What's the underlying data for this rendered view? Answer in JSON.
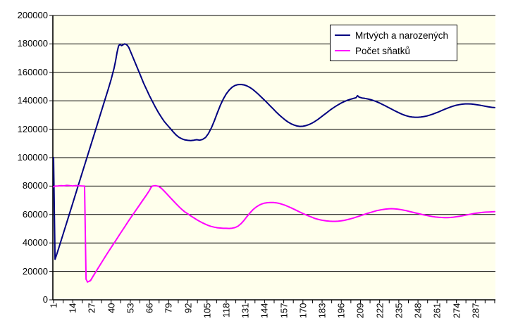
{
  "colors": {
    "canvas_bg": "#FFFFFF",
    "plot_bg": "#FFFFEC",
    "grid": "#000000",
    "axis": "#000000",
    "series1": "#000080",
    "series2": "#FF00FF",
    "legend_bg": "#FFFFFF",
    "legend_border": "#000000",
    "label_text": "#000000"
  },
  "chart_data": {
    "type": "line",
    "title": "",
    "xlabel": "",
    "ylabel": "",
    "grid": "horizontal",
    "legend_position": "top-right",
    "y_axis": {
      "min": 0,
      "max": 200000,
      "step": 20000,
      "tick_labels": [
        "0",
        "20000",
        "40000",
        "60000",
        "80000",
        "100000",
        "120000",
        "140000",
        "160000",
        "180000",
        "200000"
      ]
    },
    "x_axis": {
      "min": 1,
      "max": 300,
      "label_interval": 13,
      "minor_tick_interval": 6.5,
      "tick_labels": [
        "1",
        "14",
        "27",
        "40",
        "53",
        "66",
        "79",
        "92",
        "105",
        "118",
        "131",
        "144",
        "157",
        "170",
        "183",
        "196",
        "209",
        "222",
        "235",
        "248",
        "261",
        "274",
        "287"
      ]
    },
    "series": [
      {
        "name": "Mrtvých a narozených",
        "color": "#000080",
        "points": [
          [
            1,
            100000
          ],
          [
            2,
            28500
          ],
          [
            3,
            31500
          ],
          [
            5,
            38000
          ],
          [
            8,
            48000
          ],
          [
            11,
            58000
          ],
          [
            14,
            68000
          ],
          [
            17,
            78000
          ],
          [
            20,
            88000
          ],
          [
            23,
            98000
          ],
          [
            26,
            108000
          ],
          [
            29,
            118000
          ],
          [
            32,
            128000
          ],
          [
            35,
            138000
          ],
          [
            38,
            148000
          ],
          [
            40,
            155000
          ],
          [
            42,
            163000
          ],
          [
            43,
            168000
          ],
          [
            44,
            174000
          ],
          [
            45,
            178500
          ],
          [
            46,
            179800
          ],
          [
            47,
            178800
          ],
          [
            48,
            179300
          ],
          [
            49,
            180000
          ],
          [
            50,
            179800
          ],
          [
            51,
            179000
          ],
          [
            52,
            177500
          ],
          [
            54,
            172500
          ],
          [
            56,
            167500
          ],
          [
            58,
            162500
          ],
          [
            60,
            157500
          ],
          [
            62,
            152500
          ],
          [
            64,
            148000
          ],
          [
            66,
            143500
          ],
          [
            68,
            139500
          ],
          [
            70,
            135500
          ],
          [
            72,
            131800
          ],
          [
            74,
            128500
          ],
          [
            76,
            125500
          ],
          [
            78,
            123000
          ],
          [
            80,
            120700
          ],
          [
            82,
            118200
          ],
          [
            84,
            116000
          ],
          [
            86,
            114300
          ],
          [
            88,
            113200
          ],
          [
            90,
            112500
          ],
          [
            92,
            112200
          ],
          [
            94,
            112000
          ],
          [
            96,
            112300
          ],
          [
            98,
            112600
          ],
          [
            100,
            112300
          ],
          [
            102,
            112800
          ],
          [
            104,
            114200
          ],
          [
            106,
            117000
          ],
          [
            108,
            121000
          ],
          [
            110,
            126000
          ],
          [
            112,
            131500
          ],
          [
            114,
            136800
          ],
          [
            116,
            141200
          ],
          [
            118,
            144800
          ],
          [
            120,
            147500
          ],
          [
            122,
            149500
          ],
          [
            124,
            150800
          ],
          [
            126,
            151400
          ],
          [
            128,
            151500
          ],
          [
            130,
            151200
          ],
          [
            132,
            150500
          ],
          [
            134,
            149400
          ],
          [
            136,
            148000
          ],
          [
            138,
            146300
          ],
          [
            140,
            144400
          ],
          [
            142,
            142400
          ],
          [
            144,
            140400
          ],
          [
            146,
            138300
          ],
          [
            148,
            136200
          ],
          [
            150,
            134100
          ],
          [
            152,
            132000
          ],
          [
            154,
            130000
          ],
          [
            156,
            128200
          ],
          [
            158,
            126500
          ],
          [
            160,
            125000
          ],
          [
            162,
            123800
          ],
          [
            164,
            122900
          ],
          [
            166,
            122300
          ],
          [
            168,
            122000
          ],
          [
            170,
            122100
          ],
          [
            172,
            122500
          ],
          [
            174,
            123200
          ],
          [
            176,
            124200
          ],
          [
            178,
            125400
          ],
          [
            180,
            126800
          ],
          [
            182,
            128300
          ],
          [
            184,
            129900
          ],
          [
            186,
            131500
          ],
          [
            188,
            133100
          ],
          [
            190,
            134600
          ],
          [
            192,
            136000
          ],
          [
            194,
            137300
          ],
          [
            196,
            138400
          ],
          [
            198,
            139400
          ],
          [
            200,
            140300
          ],
          [
            202,
            141000
          ],
          [
            204,
            141600
          ],
          [
            206,
            142200
          ],
          [
            207,
            143600
          ],
          [
            208,
            142600
          ],
          [
            210,
            142000
          ],
          [
            212,
            141700
          ],
          [
            214,
            141300
          ],
          [
            216,
            140800
          ],
          [
            218,
            140100
          ],
          [
            220,
            139300
          ],
          [
            222,
            138400
          ],
          [
            224,
            137400
          ],
          [
            226,
            136400
          ],
          [
            228,
            135300
          ],
          [
            230,
            134200
          ],
          [
            232,
            133100
          ],
          [
            234,
            132100
          ],
          [
            236,
            131100
          ],
          [
            238,
            130200
          ],
          [
            240,
            129500
          ],
          [
            242,
            128900
          ],
          [
            244,
            128600
          ],
          [
            246,
            128400
          ],
          [
            248,
            128400
          ],
          [
            250,
            128600
          ],
          [
            252,
            128900
          ],
          [
            254,
            129300
          ],
          [
            256,
            129900
          ],
          [
            258,
            130600
          ],
          [
            260,
            131400
          ],
          [
            262,
            132200
          ],
          [
            264,
            133100
          ],
          [
            266,
            134000
          ],
          [
            268,
            134800
          ],
          [
            270,
            135600
          ],
          [
            272,
            136300
          ],
          [
            274,
            136900
          ],
          [
            276,
            137300
          ],
          [
            278,
            137600
          ],
          [
            280,
            137800
          ],
          [
            282,
            137800
          ],
          [
            284,
            137700
          ],
          [
            286,
            137500
          ],
          [
            288,
            137200
          ],
          [
            290,
            136900
          ],
          [
            292,
            136500
          ],
          [
            294,
            136100
          ],
          [
            296,
            135700
          ],
          [
            298,
            135400
          ],
          [
            300,
            135200
          ]
        ]
      },
      {
        "name": "Počet sňatků",
        "color": "#FF00FF",
        "points": [
          [
            1,
            79500
          ],
          [
            2,
            80000
          ],
          [
            4,
            80100
          ],
          [
            6,
            80300
          ],
          [
            8,
            80200
          ],
          [
            10,
            80500
          ],
          [
            12,
            80300
          ],
          [
            14,
            80100
          ],
          [
            16,
            80400
          ],
          [
            18,
            80200
          ],
          [
            20,
            80100
          ],
          [
            21,
            80000
          ],
          [
            22,
            80000
          ],
          [
            23,
            14500
          ],
          [
            24,
            12500
          ],
          [
            25,
            13000
          ],
          [
            26,
            13500
          ],
          [
            28,
            17000
          ],
          [
            31,
            22000
          ],
          [
            34,
            27000
          ],
          [
            37,
            32000
          ],
          [
            40,
            36800
          ],
          [
            43,
            41500
          ],
          [
            46,
            46300
          ],
          [
            49,
            51000
          ],
          [
            52,
            55800
          ],
          [
            55,
            60300
          ],
          [
            58,
            64800
          ],
          [
            61,
            69300
          ],
          [
            64,
            73800
          ],
          [
            66,
            77000
          ],
          [
            67,
            79000
          ],
          [
            68,
            80000
          ],
          [
            70,
            80300
          ],
          [
            72,
            79900
          ],
          [
            74,
            78500
          ],
          [
            76,
            76500
          ],
          [
            78,
            74300
          ],
          [
            80,
            72000
          ],
          [
            82,
            69800
          ],
          [
            84,
            67600
          ],
          [
            86,
            65500
          ],
          [
            88,
            63500
          ],
          [
            90,
            61800
          ],
          [
            92,
            60500
          ],
          [
            94,
            59000
          ],
          [
            96,
            57700
          ],
          [
            98,
            56400
          ],
          [
            100,
            55200
          ],
          [
            102,
            54100
          ],
          [
            104,
            53100
          ],
          [
            106,
            52300
          ],
          [
            108,
            51600
          ],
          [
            110,
            51100
          ],
          [
            112,
            50700
          ],
          [
            114,
            50500
          ],
          [
            116,
            50300
          ],
          [
            118,
            50300
          ],
          [
            120,
            50200
          ],
          [
            122,
            50400
          ],
          [
            124,
            50800
          ],
          [
            126,
            51800
          ],
          [
            128,
            53500
          ],
          [
            130,
            55800
          ],
          [
            132,
            58500
          ],
          [
            134,
            61000
          ],
          [
            136,
            63200
          ],
          [
            138,
            65000
          ],
          [
            140,
            66400
          ],
          [
            142,
            67400
          ],
          [
            144,
            68000
          ],
          [
            146,
            68300
          ],
          [
            148,
            68400
          ],
          [
            150,
            68400
          ],
          [
            152,
            68200
          ],
          [
            154,
            67800
          ],
          [
            156,
            67200
          ],
          [
            158,
            66500
          ],
          [
            160,
            65600
          ],
          [
            162,
            64700
          ],
          [
            164,
            63700
          ],
          [
            166,
            62700
          ],
          [
            168,
            61700
          ],
          [
            170,
            60700
          ],
          [
            172,
            59800
          ],
          [
            174,
            58900
          ],
          [
            176,
            58100
          ],
          [
            178,
            57300
          ],
          [
            180,
            56700
          ],
          [
            182,
            56200
          ],
          [
            184,
            55800
          ],
          [
            186,
            55500
          ],
          [
            188,
            55300
          ],
          [
            190,
            55200
          ],
          [
            192,
            55200
          ],
          [
            194,
            55300
          ],
          [
            196,
            55600
          ],
          [
            198,
            55900
          ],
          [
            200,
            56400
          ],
          [
            202,
            56900
          ],
          [
            204,
            57500
          ],
          [
            206,
            58100
          ],
          [
            208,
            58800
          ],
          [
            210,
            59500
          ],
          [
            212,
            60200
          ],
          [
            214,
            60900
          ],
          [
            216,
            61500
          ],
          [
            218,
            62100
          ],
          [
            220,
            62700
          ],
          [
            222,
            63100
          ],
          [
            224,
            63500
          ],
          [
            226,
            63800
          ],
          [
            228,
            64000
          ],
          [
            230,
            64100
          ],
          [
            232,
            64000
          ],
          [
            234,
            63800
          ],
          [
            236,
            63500
          ],
          [
            238,
            63100
          ],
          [
            240,
            62700
          ],
          [
            242,
            62200
          ],
          [
            244,
            61700
          ],
          [
            246,
            61200
          ],
          [
            248,
            60700
          ],
          [
            250,
            60200
          ],
          [
            252,
            59700
          ],
          [
            254,
            59300
          ],
          [
            256,
            58900
          ],
          [
            258,
            58500
          ],
          [
            260,
            58200
          ],
          [
            262,
            58000
          ],
          [
            264,
            57900
          ],
          [
            266,
            57800
          ],
          [
            268,
            57800
          ],
          [
            270,
            57900
          ],
          [
            272,
            58100
          ],
          [
            274,
            58400
          ],
          [
            276,
            58700
          ],
          [
            278,
            59100
          ],
          [
            280,
            59500
          ],
          [
            282,
            59900
          ],
          [
            284,
            60300
          ],
          [
            286,
            60700
          ],
          [
            288,
            61000
          ],
          [
            290,
            61300
          ],
          [
            292,
            61500
          ],
          [
            294,
            61700
          ],
          [
            296,
            61800
          ],
          [
            298,
            61900
          ],
          [
            300,
            62000
          ]
        ]
      }
    ]
  }
}
